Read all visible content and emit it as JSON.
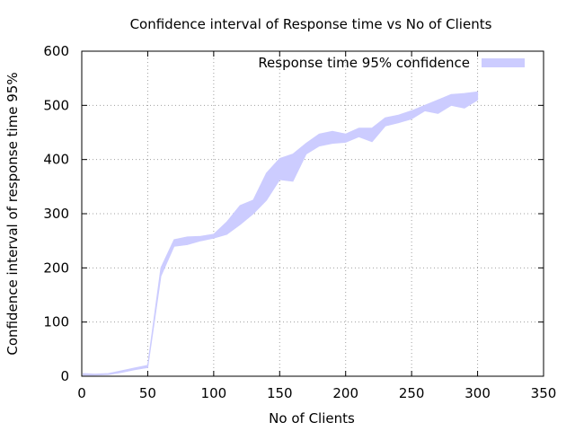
{
  "chart_data": {
    "type": "area",
    "title": "Confidence interval of Response time vs No of Clients",
    "xlabel": "No of Clients",
    "ylabel": "Confidence interval of response time 95%",
    "xlim": [
      0,
      350
    ],
    "ylim": [
      0,
      600
    ],
    "xticks": [
      0,
      50,
      100,
      150,
      200,
      250,
      300,
      350
    ],
    "yticks": [
      0,
      100,
      200,
      300,
      400,
      500,
      600
    ],
    "grid": true,
    "legend": "top-right",
    "series": [
      {
        "name": "Response time 95% confidence",
        "color": "#ccccff",
        "x": [
          1,
          10,
          20,
          30,
          40,
          50,
          60,
          70,
          80,
          90,
          100,
          110,
          120,
          130,
          140,
          150,
          160,
          170,
          180,
          190,
          200,
          210,
          220,
          230,
          240,
          250,
          260,
          270,
          280,
          290,
          300
        ],
        "lower": [
          2,
          2,
          3,
          7,
          12,
          16,
          185,
          240,
          243,
          250,
          255,
          262,
          280,
          300,
          325,
          363,
          360,
          410,
          425,
          430,
          432,
          442,
          433,
          462,
          468,
          475,
          490,
          485,
          500,
          495,
          510
        ],
        "upper": [
          5,
          4,
          5,
          10,
          15,
          20,
          200,
          252,
          257,
          258,
          262,
          285,
          315,
          325,
          375,
          402,
          410,
          430,
          447,
          452,
          447,
          458,
          458,
          477,
          482,
          490,
          500,
          510,
          520,
          522,
          525
        ]
      }
    ]
  }
}
